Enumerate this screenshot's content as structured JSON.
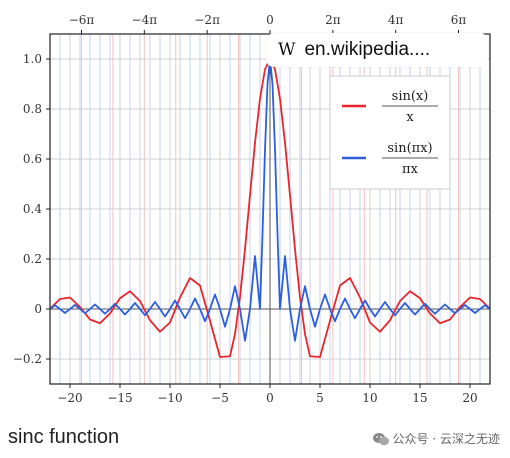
{
  "source": {
    "logo": "W",
    "domain": "en.wikipedia...."
  },
  "caption": "sinc function",
  "watermark": "公众号 · 云深之无迹",
  "colors": {
    "series_sinx": "#e8262b",
    "series_sinpix": "#2b5fe0",
    "grid": "#d0d0d0",
    "axis": "#222222"
  },
  "chart_data": {
    "type": "line",
    "xlim": [
      -22,
      22
    ],
    "ylim": [
      -0.3,
      1.1
    ],
    "grid": true,
    "legend_position": "top-right",
    "y_ticks": [
      {
        "value": 1.0,
        "label": "1.0"
      },
      {
        "value": 0.8,
        "label": "0.8"
      },
      {
        "value": 0.6,
        "label": "0.6"
      },
      {
        "value": 0.4,
        "label": "0.4"
      },
      {
        "value": 0.2,
        "label": "0.2"
      },
      {
        "value": 0,
        "label": "0"
      },
      {
        "value": -0.2,
        "label": "−0.2"
      }
    ],
    "x_ticks_bottom": [
      {
        "value": -20,
        "label": "−20"
      },
      {
        "value": -15,
        "label": "−15"
      },
      {
        "value": -10,
        "label": "−10"
      },
      {
        "value": -5,
        "label": "−5"
      },
      {
        "value": 0,
        "label": "0"
      },
      {
        "value": 5,
        "label": "5"
      },
      {
        "value": 10,
        "label": "10"
      },
      {
        "value": 15,
        "label": "15"
      },
      {
        "value": 20,
        "label": "20"
      }
    ],
    "x_ticks_top": [
      {
        "value": -18.85,
        "label": "−6π"
      },
      {
        "value": -12.566,
        "label": "−4π"
      },
      {
        "value": -6.283,
        "label": "−2π"
      },
      {
        "value": 0,
        "label": "0"
      },
      {
        "value": 6.283,
        "label": "2π"
      },
      {
        "value": 12.566,
        "label": "4π"
      },
      {
        "value": 18.85,
        "label": "6π"
      }
    ],
    "series": [
      {
        "color": "#e8262b",
        "legend_label": {
          "numerator": "sin(x)",
          "denominator": "x"
        },
        "x": [
          -22,
          -21,
          -20,
          -19,
          -18,
          -17,
          -16,
          -15,
          -14,
          -13,
          -12,
          -11,
          -10,
          -9,
          -8,
          -7,
          -6,
          -5,
          -4,
          -3.5,
          -3,
          -2.5,
          -2,
          -1.5,
          -1,
          -0.5,
          0,
          0.5,
          1,
          1.5,
          2,
          2.5,
          3,
          3.5,
          4,
          5,
          6,
          7,
          8,
          9,
          10,
          11,
          12,
          13,
          14,
          15,
          16,
          17,
          18,
          19,
          20,
          21,
          22
        ],
        "y": [
          0.001,
          0.04,
          0.046,
          0.008,
          -0.042,
          -0.057,
          -0.018,
          0.043,
          0.071,
          0.032,
          -0.045,
          -0.091,
          -0.054,
          0.046,
          0.124,
          0.094,
          -0.047,
          -0.192,
          -0.189,
          -0.1,
          0.047,
          0.239,
          0.455,
          0.665,
          0.841,
          0.959,
          1.0,
          0.959,
          0.841,
          0.665,
          0.455,
          0.239,
          0.047,
          -0.1,
          -0.189,
          -0.192,
          -0.047,
          0.094,
          0.124,
          0.046,
          -0.054,
          -0.091,
          -0.045,
          0.032,
          0.071,
          0.043,
          -0.018,
          -0.057,
          -0.042,
          0.008,
          0.046,
          0.04,
          0.001
        ]
      },
      {
        "color": "#2b5fe0",
        "legend_label": {
          "numerator": "sin(πx)",
          "denominator": "πx"
        },
        "x": [
          -22,
          -21.5,
          -21,
          -20.5,
          -20,
          -19.5,
          -19,
          -18.5,
          -18,
          -17.5,
          -17,
          -16.5,
          -16,
          -15.5,
          -15,
          -14.5,
          -14,
          -13.5,
          -13,
          -12.5,
          -12,
          -11.5,
          -11,
          -10.5,
          -10,
          -9.5,
          -9,
          -8.5,
          -8,
          -7.5,
          -7,
          -6.5,
          -6,
          -5.5,
          -5,
          -4.5,
          -4,
          -3.5,
          -3,
          -2.5,
          -2,
          -1.5,
          -1,
          -0.75,
          -0.5,
          -0.25,
          0,
          0.25,
          0.5,
          0.75,
          1,
          1.5,
          2,
          2.5,
          3,
          3.5,
          4,
          4.5,
          5,
          5.5,
          6,
          6.5,
          7,
          7.5,
          8,
          8.5,
          9,
          9.5,
          10,
          10.5,
          11,
          11.5,
          12,
          12.5,
          13,
          13.5,
          14,
          14.5,
          15,
          15.5,
          16,
          16.5,
          17,
          17.5,
          18,
          18.5,
          19,
          19.5,
          20,
          20.5,
          21,
          21.5,
          22
        ],
        "y": [
          0,
          0.015,
          0,
          -0.016,
          0,
          0.016,
          0,
          -0.017,
          0,
          0.018,
          0,
          -0.019,
          0,
          0.021,
          0,
          -0.022,
          0,
          0.024,
          0,
          -0.025,
          0,
          0.028,
          0,
          -0.03,
          0,
          0.034,
          0,
          -0.037,
          0,
          0.042,
          0,
          -0.049,
          0,
          0.058,
          0,
          -0.071,
          0,
          0.091,
          0,
          -0.127,
          0,
          0.212,
          0,
          0.3,
          0.637,
          0.9,
          1.0,
          0.9,
          0.637,
          0.3,
          0,
          0.212,
          0,
          -0.127,
          0,
          0.091,
          0,
          -0.071,
          0,
          0.058,
          0,
          -0.049,
          0,
          0.042,
          0,
          -0.037,
          0,
          0.034,
          0,
          -0.03,
          0,
          0.028,
          0,
          -0.025,
          0,
          0.024,
          0,
          -0.022,
          0,
          0.021,
          0,
          -0.019,
          0,
          0.018,
          0,
          -0.017,
          0,
          0.016,
          0,
          -0.016,
          0,
          0.015,
          0
        ]
      }
    ]
  }
}
